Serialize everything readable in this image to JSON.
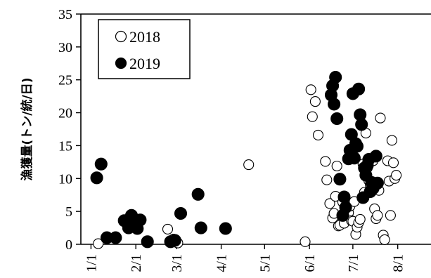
{
  "chart_data": {
    "type": "scatter",
    "title": "",
    "xlabel": "",
    "ylabel": "漁獲量(トン/統/日)",
    "xlim": [
      "2018-12-25",
      "2018-08-24"
    ],
    "x_ticks": [
      "1/1",
      "2/1",
      "3/1",
      "4/1",
      "5/1",
      "6/1",
      "7/1",
      "8/1"
    ],
    "ylim": [
      0,
      35
    ],
    "y_ticks": [
      "0",
      "5",
      "10",
      "15",
      "20",
      "25",
      "30",
      "35"
    ],
    "grid": false,
    "legend": "top-left",
    "series": [
      {
        "name": "2018",
        "marker": "open-circle",
        "points": [
          [
            "01-06",
            0.1
          ],
          [
            "02-23",
            2.3
          ],
          [
            "02-27",
            0.8
          ],
          [
            "02-28",
            0.5
          ],
          [
            "03-01",
            0.3
          ],
          [
            "03-02",
            0.2
          ],
          [
            "04-20",
            12.1
          ],
          [
            "05-29",
            0.4
          ],
          [
            "06-02",
            23.5
          ],
          [
            "06-03",
            19.4
          ],
          [
            "06-05",
            21.7
          ],
          [
            "06-07",
            16.6
          ],
          [
            "06-12",
            12.6
          ],
          [
            "06-13",
            9.8
          ],
          [
            "06-15",
            6.2
          ],
          [
            "06-17",
            4.0
          ],
          [
            "06-18",
            4.7
          ],
          [
            "06-19",
            7.3
          ],
          [
            "06-20",
            11.9
          ],
          [
            "06-21",
            2.8
          ],
          [
            "06-22",
            2.9
          ],
          [
            "06-24",
            6.4
          ],
          [
            "06-25",
            3.2
          ],
          [
            "06-27",
            5.1
          ],
          [
            "06-28",
            4.8
          ],
          [
            "06-29",
            5.8
          ],
          [
            "06-30",
            3.6
          ],
          [
            "07-01",
            3.5
          ],
          [
            "07-02",
            6.5
          ],
          [
            "07-03",
            1.5
          ],
          [
            "07-04",
            2.6
          ],
          [
            "07-05",
            3.3
          ],
          [
            "07-06",
            3.8
          ],
          [
            "07-08",
            12.2
          ],
          [
            "07-09",
            7.9
          ],
          [
            "07-10",
            16.9
          ],
          [
            "07-11",
            11.6
          ],
          [
            "07-12",
            9.7
          ],
          [
            "07-13",
            9.0
          ],
          [
            "07-14",
            8.7
          ],
          [
            "07-15",
            12.7
          ],
          [
            "07-16",
            5.4
          ],
          [
            "07-17",
            3.9
          ],
          [
            "07-18",
            4.4
          ],
          [
            "07-19",
            8.2
          ],
          [
            "07-20",
            19.2
          ],
          [
            "07-22",
            1.4
          ],
          [
            "07-23",
            0.7
          ],
          [
            "07-25",
            12.7
          ],
          [
            "07-26",
            9.6
          ],
          [
            "07-27",
            4.4
          ],
          [
            "07-28",
            15.8
          ],
          [
            "07-29",
            12.4
          ],
          [
            "07-30",
            10.0
          ],
          [
            "07-31",
            10.5
          ]
        ]
      },
      {
        "name": "2019",
        "marker": "filled-circle",
        "points": [
          [
            "01-05",
            10.1
          ],
          [
            "01-08",
            12.2
          ],
          [
            "01-12",
            1.0
          ],
          [
            "01-18",
            1.0
          ],
          [
            "01-24",
            3.6
          ],
          [
            "01-27",
            2.5
          ],
          [
            "01-29",
            4.4
          ],
          [
            "01-31",
            2.9
          ],
          [
            "02-02",
            2.4
          ],
          [
            "02-04",
            3.7
          ],
          [
            "02-09",
            0.4
          ],
          [
            "02-25",
            0.4
          ],
          [
            "02-28",
            0.6
          ],
          [
            "03-04",
            4.7
          ],
          [
            "03-16",
            7.6
          ],
          [
            "03-18",
            2.5
          ],
          [
            "04-04",
            2.4
          ],
          [
            "06-16",
            22.7
          ],
          [
            "06-17",
            24.1
          ],
          [
            "06-18",
            21.3
          ],
          [
            "06-19",
            25.4
          ],
          [
            "06-20",
            19.1
          ],
          [
            "06-22",
            9.9
          ],
          [
            "06-24",
            4.4
          ],
          [
            "06-25",
            7.2
          ],
          [
            "06-26",
            5.6
          ],
          [
            "06-28",
            13.0
          ],
          [
            "06-29",
            14.3
          ],
          [
            "06-30",
            16.7
          ],
          [
            "07-01",
            22.9
          ],
          [
            "07-02",
            13.1
          ],
          [
            "07-03",
            15.3
          ],
          [
            "07-04",
            14.9
          ],
          [
            "07-05",
            23.6
          ],
          [
            "07-06",
            19.7
          ],
          [
            "07-07",
            18.2
          ],
          [
            "07-08",
            7.1
          ],
          [
            "07-09",
            11.6
          ],
          [
            "07-10",
            10.5
          ],
          [
            "07-11",
            12.0
          ],
          [
            "07-12",
            12.9
          ],
          [
            "07-13",
            8.0
          ],
          [
            "07-14",
            9.4
          ],
          [
            "07-15",
            8.5
          ],
          [
            "07-17",
            13.4
          ],
          [
            "07-18",
            9.3
          ]
        ]
      }
    ]
  }
}
